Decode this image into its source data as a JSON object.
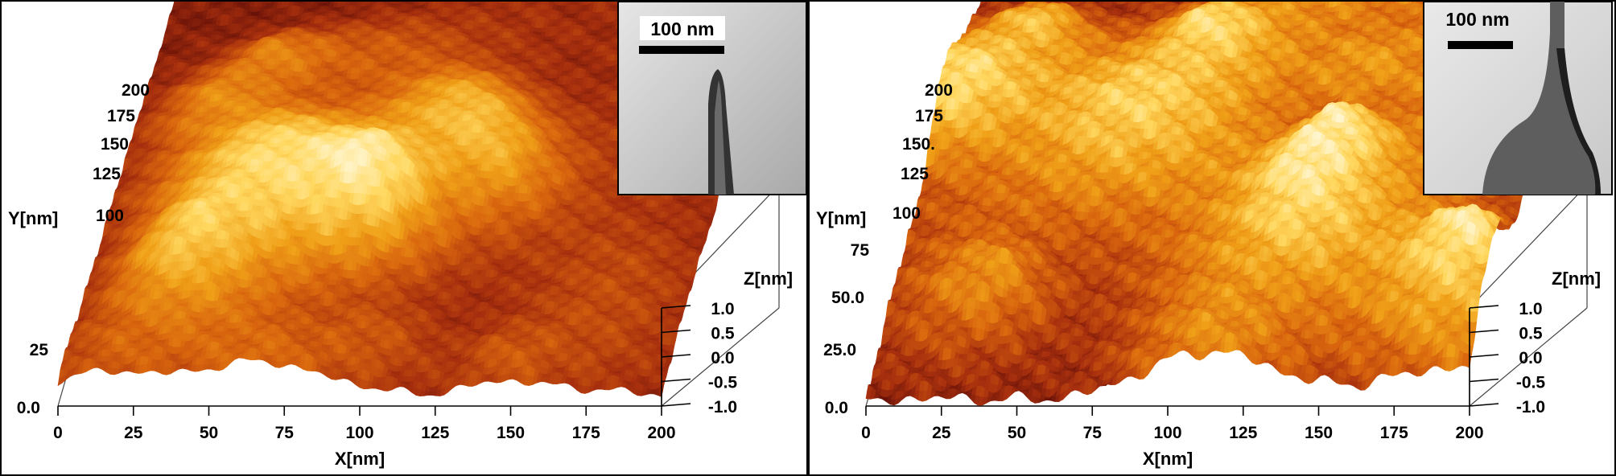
{
  "chart_data": [
    {
      "type": "surface",
      "panel": "left",
      "xlabel": "X[nm]",
      "ylabel": "Y[nm]",
      "zlabel": "Z[nm]",
      "x_ticks": [
        "0",
        "25",
        "50",
        "75",
        "100",
        "125",
        "150",
        "175",
        "200"
      ],
      "y_ticks": [
        "0.0",
        "25",
        "100",
        "125",
        "150",
        "175",
        "200"
      ],
      "z_ticks": [
        "1.0",
        "0.5",
        "0.0",
        "-0.5",
        "-1.0"
      ],
      "xlim": [
        0,
        200
      ],
      "ylim": [
        0,
        200
      ],
      "zlim": [
        -1.0,
        1.0
      ],
      "inset": {
        "scale_bar_label": "100 nm",
        "tip": "sharp"
      },
      "colormap": [
        "#5c0c08",
        "#a8300e",
        "#d9660e",
        "#f0a018",
        "#ffd860",
        "#fff6d0"
      ]
    },
    {
      "type": "surface",
      "panel": "right",
      "xlabel": "X[nm]",
      "ylabel": "Y[nm]",
      "zlabel": "Z[nm]",
      "x_ticks": [
        "0",
        "25",
        "50",
        "75",
        "100",
        "125",
        "150",
        "175",
        "200"
      ],
      "y_ticks": [
        "0.0",
        "25.0",
        "50.0",
        "75",
        "100",
        "125",
        "150.",
        "175",
        "200"
      ],
      "z_ticks": [
        "1.0",
        "0.5",
        "0.0",
        "-0.5",
        "-1.0"
      ],
      "xlim": [
        0,
        200
      ],
      "ylim": [
        0,
        200
      ],
      "zlim": [
        -1.0,
        1.0
      ],
      "inset": {
        "scale_bar_label": "100 nm",
        "tip": "blunt"
      },
      "colormap": [
        "#5c0c08",
        "#a8300e",
        "#d9660e",
        "#f0a018",
        "#ffd860",
        "#fff6d0"
      ]
    }
  ]
}
